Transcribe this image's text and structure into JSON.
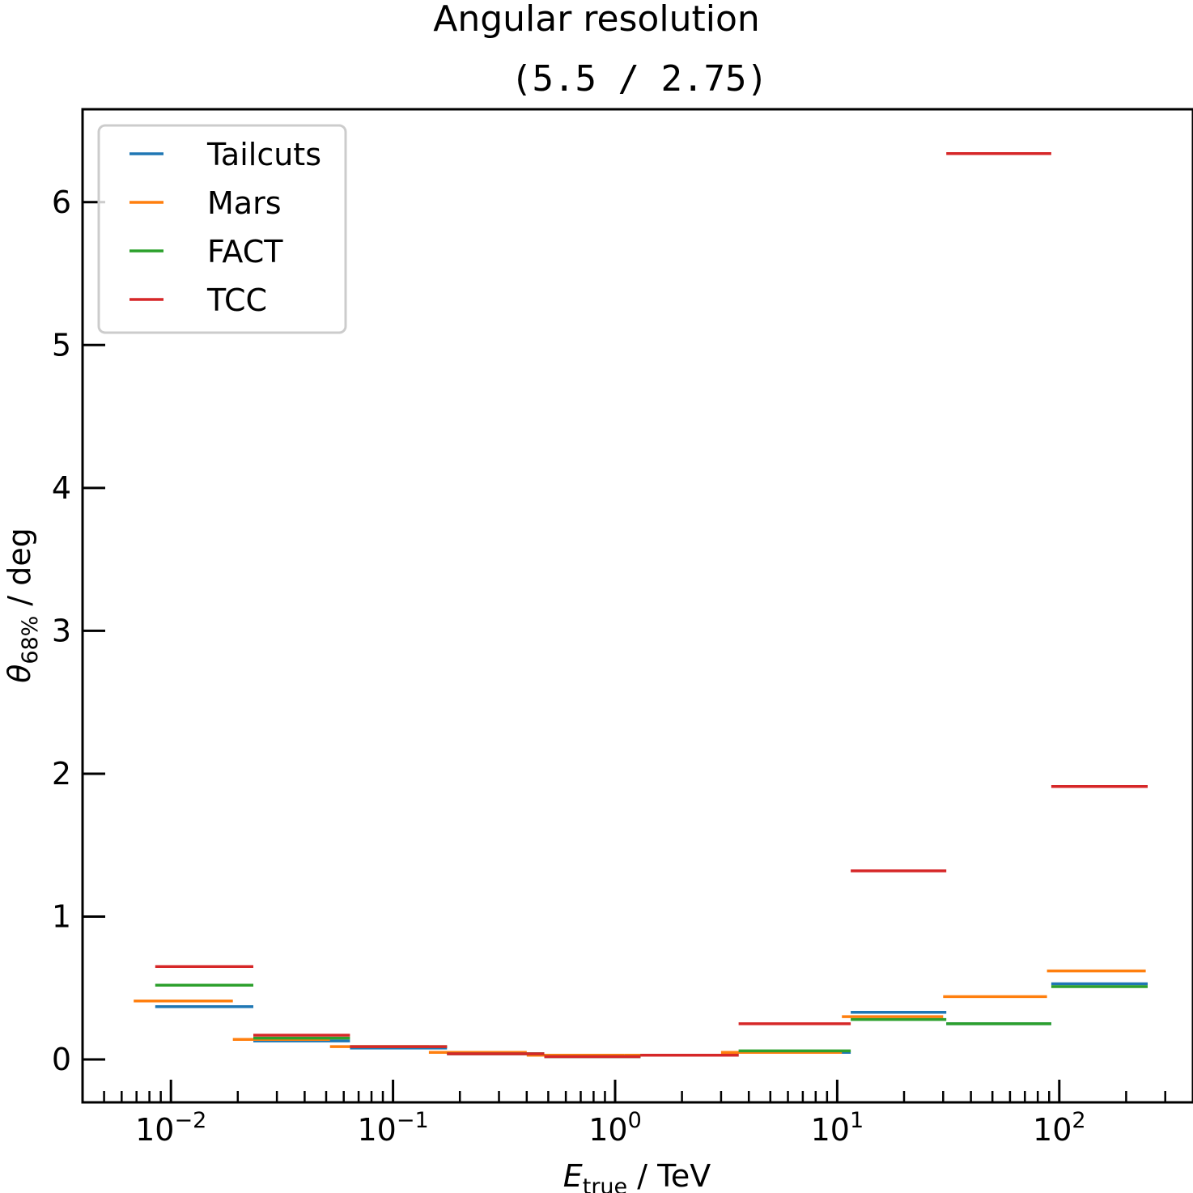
{
  "chart_data": {
    "type": "line",
    "step_style": "horizontal-bin-segments",
    "title": "Angular resolution",
    "subtitle": "(5.5 / 2.75)",
    "xlabel": {
      "main": "E",
      "sub": "true",
      "rest": " / TeV"
    },
    "ylabel": {
      "main": "θ",
      "sub": "68%",
      "rest": " / deg"
    },
    "x_scale": "log",
    "xlim": [
      0.004,
      400
    ],
    "ylim": [
      -0.3,
      6.65
    ],
    "y_ticks": [
      0,
      1,
      2,
      3,
      4,
      5,
      6
    ],
    "x_tick_labels": [
      {
        "value": 0.01,
        "base": "10",
        "exp": "−2"
      },
      {
        "value": 0.1,
        "base": "10",
        "exp": "−1"
      },
      {
        "value": 1,
        "base": "10",
        "exp": "0"
      },
      {
        "value": 10,
        "base": "10",
        "exp": "1"
      },
      {
        "value": 100,
        "base": "10",
        "exp": "2"
      }
    ],
    "legend": {
      "position": "top-left",
      "entries": [
        "Tailcuts",
        "Mars",
        "FACT",
        "TCC"
      ]
    },
    "grid": false,
    "series": [
      {
        "name": "Tailcuts",
        "color": "#1f77b4",
        "bins": [
          {
            "x_lo": 0.0085,
            "x_hi": 0.0235,
            "y": 0.37
          },
          {
            "x_lo": 0.0235,
            "x_hi": 0.064,
            "y": 0.13
          },
          {
            "x_lo": 0.064,
            "x_hi": 0.175,
            "y": 0.08
          },
          {
            "x_lo": 0.175,
            "x_hi": 0.48,
            "y": 0.04
          },
          {
            "x_lo": 0.48,
            "x_hi": 1.3,
            "y": 0.02
          },
          {
            "x_lo": 1.3,
            "x_hi": 3.6,
            "y": 0.03
          },
          {
            "x_lo": 3.6,
            "x_hi": 11.5,
            "y": 0.05
          },
          {
            "x_lo": 11.5,
            "x_hi": 31,
            "y": 0.33
          },
          {
            "x_lo": 31,
            "x_hi": 92,
            "y": 0.25
          },
          {
            "x_lo": 92,
            "x_hi": 250,
            "y": 0.53
          }
        ]
      },
      {
        "name": "Mars",
        "color": "#ff7f0e",
        "bins": [
          {
            "x_lo": 0.0068,
            "x_hi": 0.019,
            "y": 0.41
          },
          {
            "x_lo": 0.019,
            "x_hi": 0.052,
            "y": 0.14
          },
          {
            "x_lo": 0.052,
            "x_hi": 0.145,
            "y": 0.09
          },
          {
            "x_lo": 0.145,
            "x_hi": 0.4,
            "y": 0.05
          },
          {
            "x_lo": 0.4,
            "x_hi": 1.1,
            "y": 0.03
          },
          {
            "x_lo": 1.1,
            "x_hi": 3.0,
            "y": 0.03
          },
          {
            "x_lo": 3.0,
            "x_hi": 10.5,
            "y": 0.05
          },
          {
            "x_lo": 10.5,
            "x_hi": 30,
            "y": 0.3
          },
          {
            "x_lo": 30,
            "x_hi": 88,
            "y": 0.44
          },
          {
            "x_lo": 88,
            "x_hi": 245,
            "y": 0.62
          }
        ]
      },
      {
        "name": "FACT",
        "color": "#2ca02c",
        "bins": [
          {
            "x_lo": 0.0085,
            "x_hi": 0.0235,
            "y": 0.52
          },
          {
            "x_lo": 0.0235,
            "x_hi": 0.064,
            "y": 0.15
          },
          {
            "x_lo": 0.064,
            "x_hi": 0.175,
            "y": 0.09
          },
          {
            "x_lo": 0.175,
            "x_hi": 0.48,
            "y": 0.04
          },
          {
            "x_lo": 0.48,
            "x_hi": 1.3,
            "y": 0.02
          },
          {
            "x_lo": 1.3,
            "x_hi": 3.6,
            "y": 0.03
          },
          {
            "x_lo": 3.6,
            "x_hi": 11.5,
            "y": 0.06
          },
          {
            "x_lo": 11.5,
            "x_hi": 31,
            "y": 0.28
          },
          {
            "x_lo": 31,
            "x_hi": 92,
            "y": 0.25
          },
          {
            "x_lo": 92,
            "x_hi": 250,
            "y": 0.51
          }
        ]
      },
      {
        "name": "TCC",
        "color": "#d62728",
        "bins": [
          {
            "x_lo": 0.0085,
            "x_hi": 0.0235,
            "y": 0.65
          },
          {
            "x_lo": 0.0235,
            "x_hi": 0.064,
            "y": 0.17
          },
          {
            "x_lo": 0.064,
            "x_hi": 0.175,
            "y": 0.09
          },
          {
            "x_lo": 0.175,
            "x_hi": 0.48,
            "y": 0.04
          },
          {
            "x_lo": 0.48,
            "x_hi": 1.3,
            "y": 0.02
          },
          {
            "x_lo": 1.3,
            "x_hi": 3.6,
            "y": 0.03
          },
          {
            "x_lo": 3.6,
            "x_hi": 11.5,
            "y": 0.25
          },
          {
            "x_lo": 11.5,
            "x_hi": 31,
            "y": 1.32
          },
          {
            "x_lo": 31,
            "x_hi": 92,
            "y": 6.34
          },
          {
            "x_lo": 92,
            "x_hi": 250,
            "y": 1.91
          }
        ]
      }
    ]
  }
}
